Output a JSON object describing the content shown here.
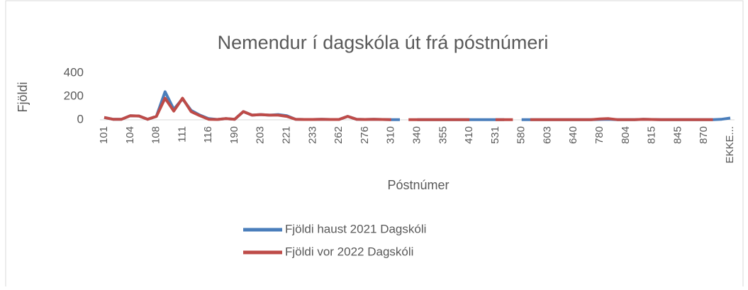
{
  "chart_data": {
    "type": "line",
    "title": "Nemendur í dagskóla út frá póstnúmeri",
    "x_label": "Póstnúmer",
    "y_label": "Fjöldi",
    "categories": [
      "101",
      null,
      null,
      "104",
      null,
      null,
      "108",
      null,
      null,
      "111",
      null,
      null,
      "116",
      null,
      null,
      "190",
      null,
      null,
      "203",
      null,
      null,
      "221",
      null,
      null,
      "233",
      null,
      null,
      "262",
      null,
      null,
      "276",
      null,
      null,
      "310",
      null,
      null,
      "340",
      null,
      null,
      "355",
      null,
      null,
      "410",
      null,
      null,
      "531",
      null,
      null,
      "580",
      null,
      null,
      "603",
      null,
      null,
      "640",
      null,
      null,
      "780",
      null,
      null,
      "804",
      null,
      null,
      "815",
      null,
      null,
      "845",
      null,
      null,
      "870",
      null,
      null,
      "EKKE..."
    ],
    "series": [
      {
        "name": "Fjöldi haust 2021 Dagskóli",
        "color": "#4a7ebb",
        "values": [
          20,
          5,
          5,
          35,
          33,
          5,
          30,
          240,
          90,
          180,
          80,
          40,
          10,
          3,
          10,
          5,
          70,
          40,
          45,
          40,
          45,
          35,
          5,
          3,
          3,
          5,
          3,
          3,
          30,
          5,
          3,
          5,
          3,
          2,
          1,
          null,
          2,
          1,
          1,
          1,
          1,
          1,
          1,
          1,
          1,
          1,
          1,
          null,
          1,
          1,
          1,
          2,
          1,
          1,
          1,
          1,
          1,
          3,
          5,
          2,
          1,
          1,
          5,
          3,
          1,
          1,
          1,
          1,
          1,
          1,
          1,
          5,
          15
        ]
      },
      {
        "name": "Fjöldi vor 2022 Dagskóli",
        "color": "#be4b48",
        "values": [
          20,
          5,
          5,
          35,
          33,
          5,
          30,
          185,
          75,
          185,
          70,
          35,
          5,
          3,
          10,
          5,
          70,
          40,
          45,
          40,
          40,
          30,
          5,
          3,
          3,
          5,
          3,
          3,
          30,
          5,
          3,
          5,
          3,
          2,
          null,
          2,
          2,
          1,
          1,
          1,
          1,
          1,
          1,
          null,
          null,
          1,
          1,
          1,
          null,
          1,
          1,
          2,
          1,
          1,
          1,
          1,
          1,
          8,
          10,
          2,
          1,
          1,
          5,
          3,
          1,
          1,
          1,
          1,
          1,
          1,
          1,
          null,
          null
        ]
      }
    ],
    "ylim": [
      0,
      400
    ],
    "yticks": [
      0,
      200,
      400
    ],
    "legend": "bottom"
  }
}
